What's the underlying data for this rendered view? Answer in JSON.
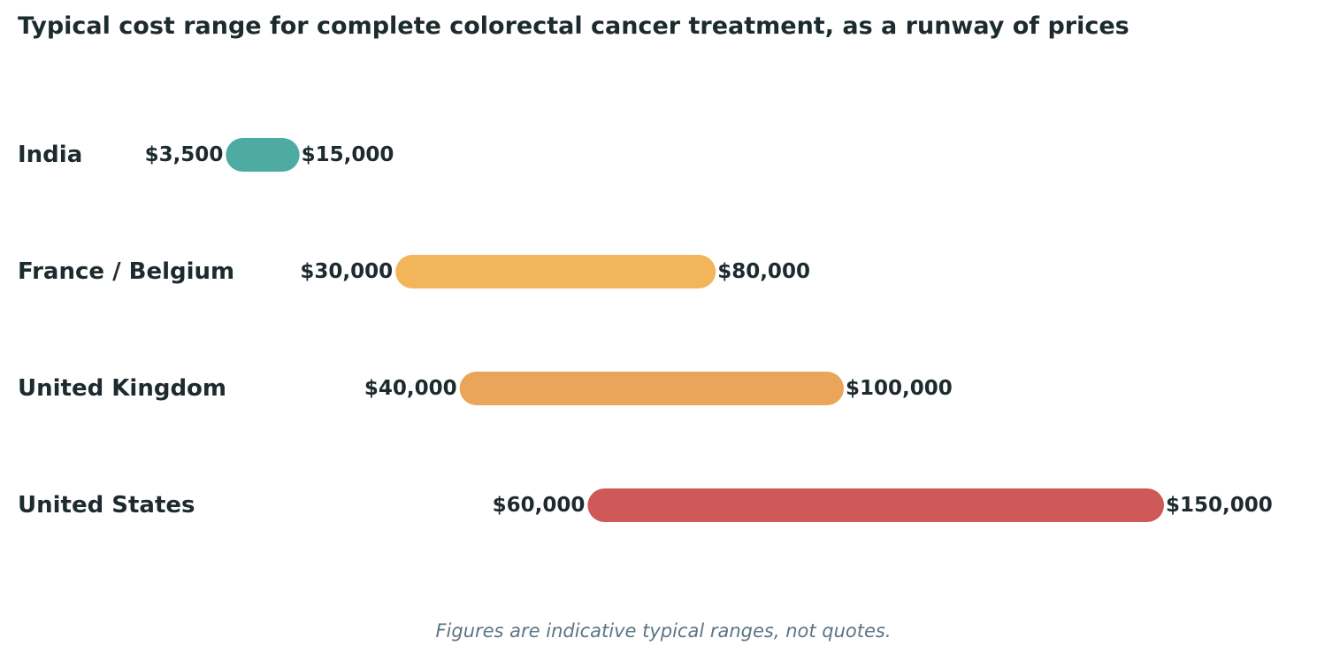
{
  "chart_data": {
    "type": "bar",
    "orientation": "horizontal-range",
    "title": "Typical cost range for complete colorectal cancer treatment, as a runway of prices",
    "footnote": "Figures are indicative typical ranges, not quotes.",
    "grid": false,
    "legend": "none",
    "xlim": [
      0,
      150000
    ],
    "categories": [
      "India",
      "France / Belgium",
      "United Kingdom",
      "United States"
    ],
    "ranges": [
      {
        "category": "India",
        "low": 3500,
        "high": 15000,
        "low_label": "$3,500",
        "high_label": "$15,000",
        "color": "#4eaba2"
      },
      {
        "category": "France / Belgium",
        "low": 30000,
        "high": 80000,
        "low_label": "$30,000",
        "high_label": "$80,000",
        "color": "#f3b55a"
      },
      {
        "category": "United Kingdom",
        "low": 40000,
        "high": 100000,
        "low_label": "$40,000",
        "high_label": "$100,000",
        "color": "#eba55b"
      },
      {
        "category": "United States",
        "low": 60000,
        "high": 150000,
        "low_label": "$60,000",
        "high_label": "$150,000",
        "color": "#cf5859"
      }
    ]
  }
}
